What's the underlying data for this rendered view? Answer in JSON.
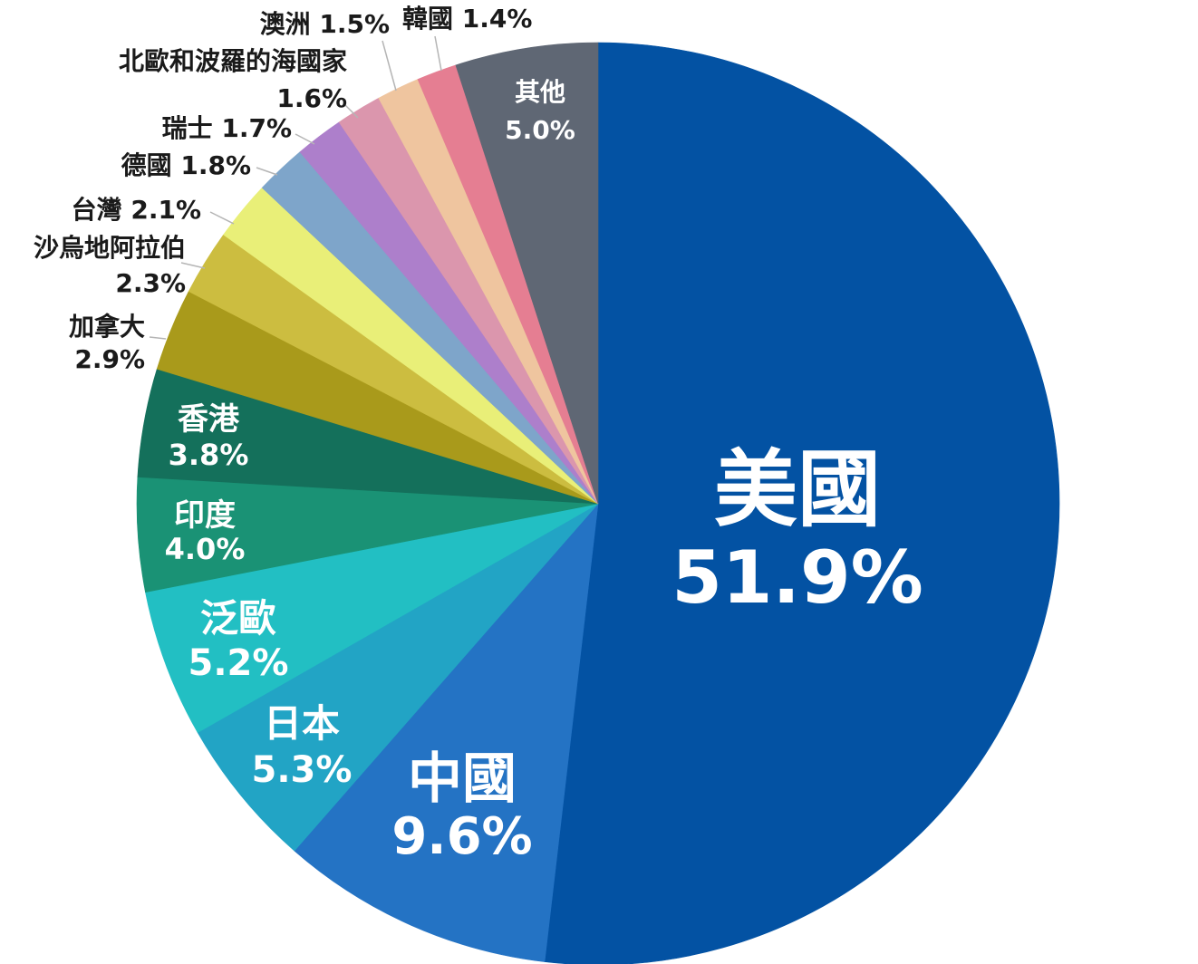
{
  "chart_data": {
    "type": "pie",
    "title": "",
    "slices": [
      {
        "name": "美國",
        "value": 51.9,
        "label": "51.9%",
        "color": "#0352a3"
      },
      {
        "name": "中國",
        "value": 9.6,
        "label": "9.6%",
        "color": "#2473c4"
      },
      {
        "name": "日本",
        "value": 5.3,
        "label": "5.3%",
        "color": "#22a4c5"
      },
      {
        "name": "泛歐",
        "value": 5.2,
        "label": "5.2%",
        "color": "#22bfc3"
      },
      {
        "name": "印度",
        "value": 4.0,
        "label": "4.0%",
        "color": "#1a9275"
      },
      {
        "name": "香港",
        "value": 3.8,
        "label": "3.8%",
        "color": "#14705b"
      },
      {
        "name": "加拿大",
        "value": 2.9,
        "label": "2.9%",
        "color": "#a99a1b"
      },
      {
        "name": "沙烏地阿拉伯",
        "value": 2.3,
        "label": "2.3%",
        "color": "#ccbd40"
      },
      {
        "name": "台灣",
        "value": 2.1,
        "label": "2.1%",
        "color": "#e9ef78"
      },
      {
        "name": "德國",
        "value": 1.8,
        "label": "1.8%",
        "color": "#7ea5ca"
      },
      {
        "name": "瑞士",
        "value": 1.7,
        "label": "1.7%",
        "color": "#ad7fcb"
      },
      {
        "name": "北歐和波羅的海國家",
        "value": 1.6,
        "label": "1.6%",
        "color": "#db96ad"
      },
      {
        "name": "澳洲",
        "value": 1.5,
        "label": "1.5%",
        "color": "#efc59f"
      },
      {
        "name": "韓國",
        "value": 1.4,
        "label": "1.4%",
        "color": "#e57e92"
      },
      {
        "name": "其他",
        "value": 5.0,
        "label": "5.0%",
        "color": "#5f6774"
      }
    ],
    "start": "12 o'clock",
    "direction": "clockwise",
    "legend": "none",
    "labels": "on slices and outside with leader lines"
  }
}
